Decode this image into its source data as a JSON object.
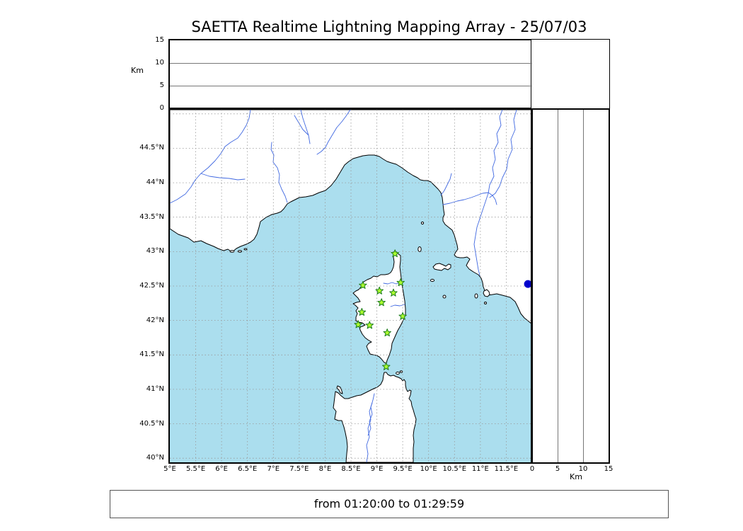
{
  "title": "SAETTA Realtime Lightning Mapping Array - 25/07/03",
  "status_text": "from 01:20:00 to 01:29:59",
  "colors": {
    "sea": "#abdeee",
    "land": "#ffffff",
    "coastline": "#000000",
    "river": "#4169e1",
    "grid": "#999999",
    "station_fill": "#adff2f",
    "station_stroke": "#1e7d1e",
    "event": "#0000cc",
    "panel_grid": "#777777"
  },
  "alt_panel": {
    "axis_label": "Km",
    "range": [
      0,
      15
    ],
    "ticks": [
      {
        "value": 0,
        "label": "0"
      },
      {
        "value": 5,
        "label": "5"
      },
      {
        "value": 10,
        "label": "10"
      },
      {
        "value": 15,
        "label": "15"
      }
    ],
    "gridlines": [
      5,
      10
    ]
  },
  "right_panel": {
    "axis_label": "Km",
    "range": [
      0,
      15
    ],
    "ticks": [
      {
        "value": 0,
        "label": "0"
      },
      {
        "value": 5,
        "label": "5"
      },
      {
        "value": 10,
        "label": "10"
      },
      {
        "value": 15,
        "label": "15"
      }
    ],
    "gridlines": [
      5,
      10
    ]
  },
  "map": {
    "lon_range": [
      5,
      12
    ],
    "lat_range": [
      39.94,
      45.06
    ],
    "lat_ticks": [
      {
        "value": 44.5,
        "label": "44.5°N"
      },
      {
        "value": 44,
        "label": "44°N"
      },
      {
        "value": 43.5,
        "label": "43.5°N"
      },
      {
        "value": 43,
        "label": "43°N"
      },
      {
        "value": 42.5,
        "label": "42.5°N"
      },
      {
        "value": 42,
        "label": "42°N"
      },
      {
        "value": 41.5,
        "label": "41.5°N"
      },
      {
        "value": 41,
        "label": "41°N"
      },
      {
        "value": 40.5,
        "label": "40.5°N"
      },
      {
        "value": 40,
        "label": "40°N"
      }
    ],
    "lon_ticks": [
      {
        "value": 5,
        "label": "5°E"
      },
      {
        "value": 5.5,
        "label": "5.5°E"
      },
      {
        "value": 6,
        "label": "6°E"
      },
      {
        "value": 6.5,
        "label": "6.5°E"
      },
      {
        "value": 7,
        "label": "7°E"
      },
      {
        "value": 7.5,
        "label": "7.5°E"
      },
      {
        "value": 8,
        "label": "8°E"
      },
      {
        "value": 8.5,
        "label": "8.5°E"
      },
      {
        "value": 9,
        "label": "9°E"
      },
      {
        "value": 9.5,
        "label": "9.5°E"
      },
      {
        "value": 10,
        "label": "10°E"
      },
      {
        "value": 10.5,
        "label": "10.5°E"
      },
      {
        "value": 11,
        "label": "11°E"
      },
      {
        "value": 11.5,
        "label": "11.5°E"
      }
    ],
    "grid_lats": [
      40,
      40.5,
      41,
      41.5,
      42,
      42.5,
      43,
      43.5,
      44,
      44.5,
      45
    ],
    "grid_lons": [
      5.5,
      6,
      6.5,
      7,
      7.5,
      8,
      8.5,
      9,
      9.5,
      10,
      10.5,
      11,
      11.5
    ]
  },
  "stations": [
    {
      "lon": 9.35,
      "lat": 42.97
    },
    {
      "lon": 8.73,
      "lat": 42.51
    },
    {
      "lon": 9.05,
      "lat": 42.43
    },
    {
      "lon": 9.32,
      "lat": 42.4
    },
    {
      "lon": 9.46,
      "lat": 42.55
    },
    {
      "lon": 9.09,
      "lat": 42.26
    },
    {
      "lon": 8.71,
      "lat": 42.12
    },
    {
      "lon": 9.5,
      "lat": 42.06
    },
    {
      "lon": 8.64,
      "lat": 41.94
    },
    {
      "lon": 8.86,
      "lat": 41.93
    },
    {
      "lon": 9.2,
      "lat": 41.82
    },
    {
      "lon": 9.18,
      "lat": 41.33
    }
  ],
  "events": [
    {
      "lon": 11.92,
      "lat": 42.53
    }
  ]
}
